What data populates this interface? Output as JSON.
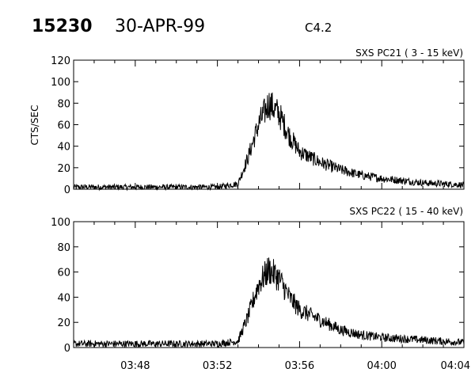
{
  "header": {
    "event_number": "15230",
    "date": "30-APR-99",
    "flare_class": "C4.2"
  },
  "chart_data": [
    {
      "type": "line",
      "title": "SXS PC21  (  3 - 15 keV)",
      "ylabel": "CTS/SEC",
      "xlabel": "",
      "x_range_minutes": [
        "03:45",
        "04:04"
      ],
      "ylim": [
        0,
        120
      ],
      "yticks": [
        0,
        20,
        40,
        60,
        80,
        100,
        120
      ],
      "xticks": [
        "03:48",
        "03:52",
        "03:56",
        "04:00",
        "04:04"
      ],
      "grid": false,
      "series": [
        {
          "x": [
            "03:45",
            "03:46",
            "03:47",
            "03:48",
            "03:49",
            "03:50",
            "03:51",
            "03:52",
            "03:53",
            "03:53.5",
            "03:54",
            "03:54.5",
            "03:55",
            "03:55.5",
            "03:56",
            "03:57",
            "03:58",
            "03:59",
            "04:00",
            "04:01",
            "04:02",
            "04:03",
            "04:04"
          ],
          "values": [
            2,
            2,
            2,
            2,
            2,
            2,
            2,
            2,
            5,
            30,
            60,
            80,
            70,
            50,
            35,
            25,
            18,
            13,
            10,
            8,
            6,
            5,
            4
          ]
        }
      ]
    },
    {
      "type": "line",
      "title": "SXS PC22  ( 15 - 40 keV)",
      "ylabel": "",
      "xlabel": "",
      "x_range_minutes": [
        "03:45",
        "04:04"
      ],
      "ylim": [
        0,
        100
      ],
      "yticks": [
        0,
        20,
        40,
        60,
        80,
        100
      ],
      "xticks": [
        "03:48",
        "03:52",
        "03:56",
        "04:00",
        "04:04"
      ],
      "grid": false,
      "series": [
        {
          "x": [
            "03:45",
            "03:46",
            "03:47",
            "03:48",
            "03:49",
            "03:50",
            "03:51",
            "03:52",
            "03:53",
            "03:53.5",
            "03:54",
            "03:54.5",
            "03:55",
            "03:55.5",
            "03:56",
            "03:57",
            "03:58",
            "03:59",
            "04:00",
            "04:01",
            "04:02",
            "04:03",
            "04:04"
          ],
          "values": [
            3,
            3,
            3,
            3,
            3,
            3,
            3,
            3,
            5,
            25,
            50,
            62,
            55,
            40,
            30,
            22,
            14,
            10,
            8,
            7,
            6,
            5,
            4
          ]
        }
      ]
    }
  ]
}
